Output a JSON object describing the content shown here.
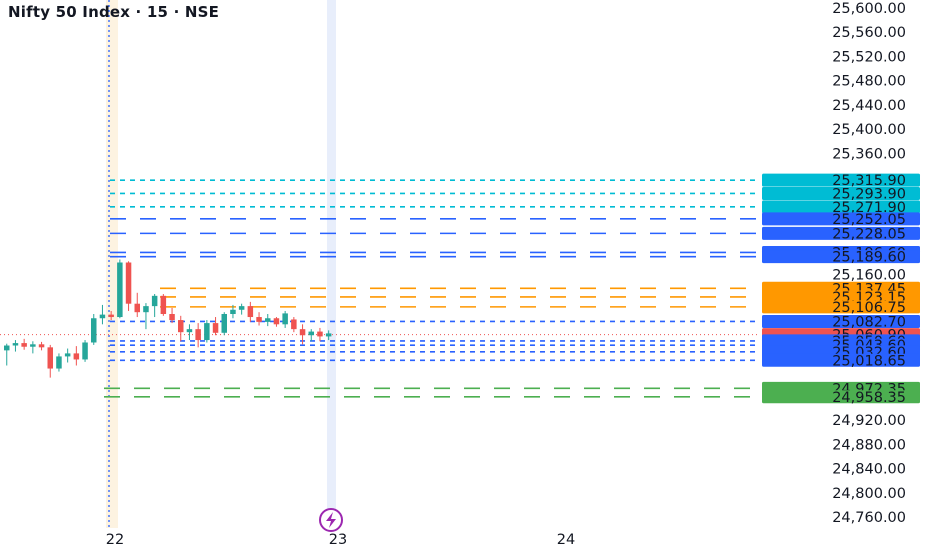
{
  "header": {
    "title": "Nifty 50 Index · 15 · NSE"
  },
  "colors": {
    "background": "#ffffff",
    "cyan": "#00bcd4",
    "blue": "#2962ff",
    "orange": "#ff9800",
    "red": "#ef5350",
    "green": "#4caf50",
    "candle_up": "#26a69a",
    "candle_down": "#ef5350",
    "axis_text": "#131722",
    "session_line": "#2962ff",
    "current_price_line": "#ef5350",
    "flash_marker": "#9c27b0"
  },
  "chart_data": {
    "type": "candlestick",
    "title": "Nifty 50 Index · 15 · NSE",
    "ylim": [
      24740,
      25620
    ],
    "y_ticks": [
      {
        "value": 25600,
        "label": "25,600.00"
      },
      {
        "value": 25560,
        "label": "25,560.00"
      },
      {
        "value": 25520,
        "label": "25,520.00"
      },
      {
        "value": 25480,
        "label": "25,480.00"
      },
      {
        "value": 25440,
        "label": "25,440.00"
      },
      {
        "value": 25400,
        "label": "25,400.00"
      },
      {
        "value": 25360,
        "label": "25,360.00"
      },
      {
        "value": 25160,
        "label": "25,160.00"
      },
      {
        "value": 24920,
        "label": "24,920.00"
      },
      {
        "value": 24880,
        "label": "24,880.00"
      },
      {
        "value": 24840,
        "label": "24,840.00"
      },
      {
        "value": 24800,
        "label": "24,800.00"
      },
      {
        "value": 24760,
        "label": "24,760.00"
      }
    ],
    "x_ticks": [
      "22",
      "23",
      "24"
    ],
    "current_price": 25060.9,
    "levels": [
      {
        "value": 25315.9,
        "label": "25,315.90",
        "color": "cyan",
        "style": "dashed"
      },
      {
        "value": 25293.9,
        "label": "25,293.90",
        "color": "cyan",
        "style": "dashed"
      },
      {
        "value": 25271.9,
        "label": "25,271.90",
        "color": "cyan",
        "style": "dashed"
      },
      {
        "value": 25252.05,
        "label": "25,252.05",
        "color": "blue",
        "style": "long-dash"
      },
      {
        "value": 25228.05,
        "label": "25,228.05",
        "color": "blue",
        "style": "long-dash"
      },
      {
        "value": 25196.6,
        "label": "25,196.60",
        "color": "blue",
        "style": "long-dash"
      },
      {
        "value": 25189.6,
        "label": "25,189.60",
        "color": "blue",
        "style": "long-dash"
      },
      {
        "value": 25137.45,
        "label": "25,137.45",
        "color": "orange",
        "style": "long-dash"
      },
      {
        "value": 25123.15,
        "label": "25,123.15",
        "color": "orange",
        "style": "long-dash"
      },
      {
        "value": 25106.75,
        "label": "25,106.75",
        "color": "orange",
        "style": "long-dash"
      },
      {
        "value": 25082.7,
        "label": "25,082.70",
        "color": "blue",
        "style": "dashed"
      },
      {
        "value": 25060.9,
        "label": "25,060.90",
        "color": "red",
        "style": "dotted"
      },
      {
        "value": 25050.6,
        "label": "25,050.60",
        "color": "blue",
        "style": "dashed"
      },
      {
        "value": 25043.6,
        "label": "25,043.60",
        "color": "blue",
        "style": "dashed"
      },
      {
        "value": 25032.6,
        "label": "25,032.60",
        "color": "blue",
        "style": "dashed"
      },
      {
        "value": 25018.65,
        "label": "25,018.65",
        "color": "blue",
        "style": "dashed"
      },
      {
        "value": 24972.35,
        "label": "24,972.35",
        "color": "green",
        "style": "long-dash"
      },
      {
        "value": 24958.35,
        "label": "24,958.35",
        "color": "green",
        "style": "long-dash"
      }
    ],
    "candles": [
      {
        "o": 25035,
        "h": 25046,
        "l": 25010,
        "c": 25043
      },
      {
        "o": 25043,
        "h": 25052,
        "l": 25033,
        "c": 25047
      },
      {
        "o": 25047,
        "h": 25054,
        "l": 25036,
        "c": 25041
      },
      {
        "o": 25041,
        "h": 25050,
        "l": 25030,
        "c": 25045
      },
      {
        "o": 25045,
        "h": 25049,
        "l": 25035,
        "c": 25040
      },
      {
        "o": 25040,
        "h": 25044,
        "l": 24990,
        "c": 25005
      },
      {
        "o": 25005,
        "h": 25030,
        "l": 25000,
        "c": 25025
      },
      {
        "o": 25025,
        "h": 25038,
        "l": 25015,
        "c": 25030
      },
      {
        "o": 25030,
        "h": 25042,
        "l": 25010,
        "c": 25020
      },
      {
        "o": 25020,
        "h": 25052,
        "l": 25016,
        "c": 25048
      },
      {
        "o": 25048,
        "h": 25095,
        "l": 25044,
        "c": 25088
      },
      {
        "o": 25088,
        "h": 25110,
        "l": 25078,
        "c": 25094
      },
      {
        "o": 25094,
        "h": 25100,
        "l": 25085,
        "c": 25090
      },
      {
        "o": 25090,
        "h": 25185,
        "l": 25088,
        "c": 25180
      },
      {
        "o": 25180,
        "h": 25182,
        "l": 25100,
        "c": 25112
      },
      {
        "o": 25112,
        "h": 25130,
        "l": 25090,
        "c": 25098
      },
      {
        "o": 25098,
        "h": 25113,
        "l": 25070,
        "c": 25108
      },
      {
        "o": 25108,
        "h": 25128,
        "l": 25090,
        "c": 25125
      },
      {
        "o": 25125,
        "h": 25128,
        "l": 25092,
        "c": 25095
      },
      {
        "o": 25095,
        "h": 25105,
        "l": 25080,
        "c": 25085
      },
      {
        "o": 25085,
        "h": 25092,
        "l": 25050,
        "c": 25065
      },
      {
        "o": 25065,
        "h": 25078,
        "l": 25052,
        "c": 25070
      },
      {
        "o": 25070,
        "h": 25080,
        "l": 25040,
        "c": 25052
      },
      {
        "o": 25052,
        "h": 25085,
        "l": 25048,
        "c": 25080
      },
      {
        "o": 25080,
        "h": 25090,
        "l": 25060,
        "c": 25064
      },
      {
        "o": 25064,
        "h": 25098,
        "l": 25060,
        "c": 25095
      },
      {
        "o": 25095,
        "h": 25110,
        "l": 25088,
        "c": 25102
      },
      {
        "o": 25102,
        "h": 25112,
        "l": 25094,
        "c": 25108
      },
      {
        "o": 25108,
        "h": 25115,
        "l": 25082,
        "c": 25090
      },
      {
        "o": 25090,
        "h": 25098,
        "l": 25076,
        "c": 25082
      },
      {
        "o": 25082,
        "h": 25095,
        "l": 25075,
        "c": 25088
      },
      {
        "o": 25088,
        "h": 25090,
        "l": 25074,
        "c": 25078
      },
      {
        "o": 25078,
        "h": 25100,
        "l": 25072,
        "c": 25096
      },
      {
        "o": 25086,
        "h": 25090,
        "l": 25065,
        "c": 25070
      },
      {
        "o": 25070,
        "h": 25078,
        "l": 25045,
        "c": 25060
      },
      {
        "o": 25060,
        "h": 25070,
        "l": 25050,
        "c": 25066
      },
      {
        "o": 25066,
        "h": 25072,
        "l": 25050,
        "c": 25058
      },
      {
        "o": 25058,
        "h": 25068,
        "l": 25052,
        "c": 25063
      }
    ]
  }
}
